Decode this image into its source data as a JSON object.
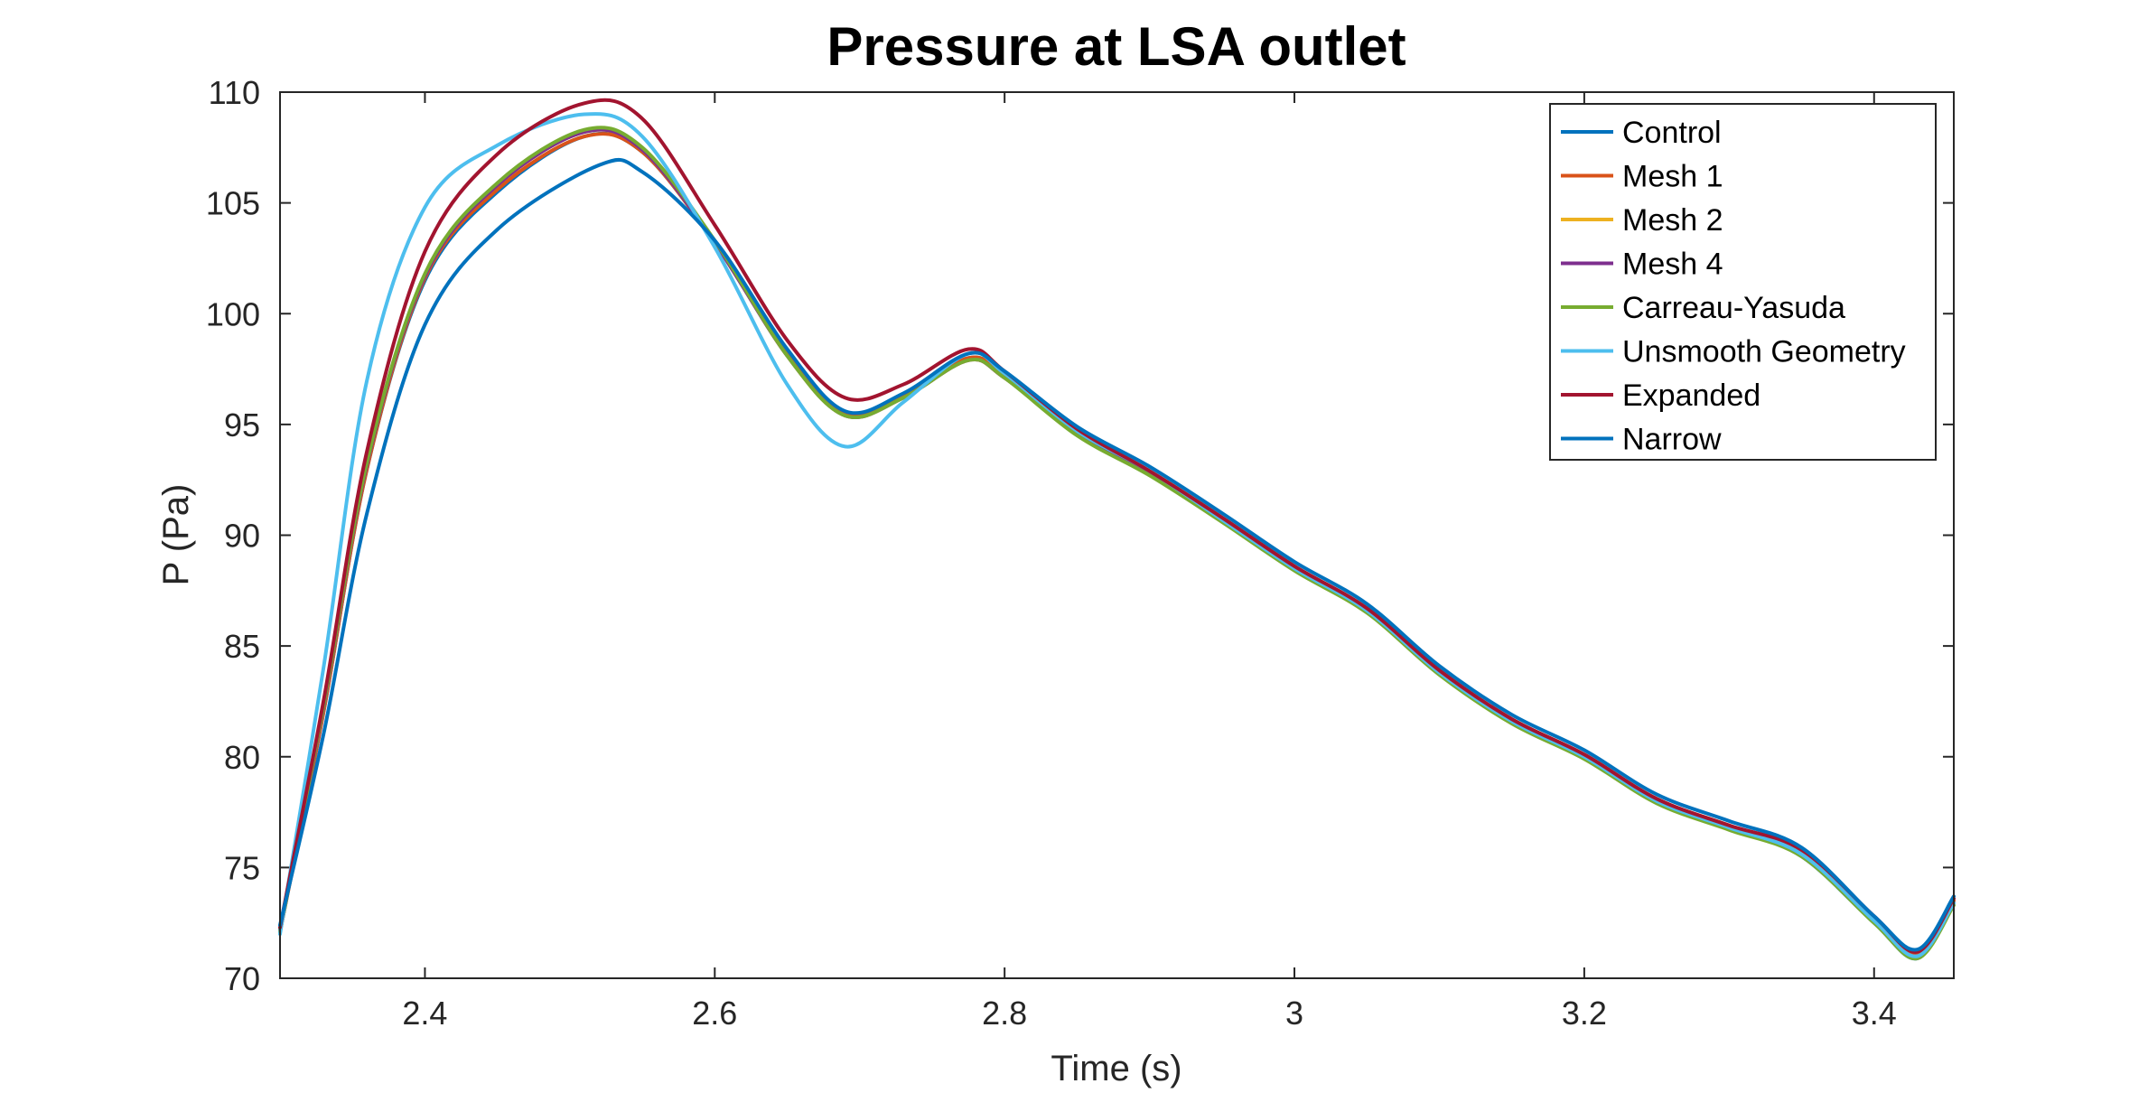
{
  "chart_data": {
    "type": "line",
    "title": "Pressure at LSA outlet",
    "xlabel": "Time (s)",
    "ylabel": "P (Pa)",
    "xlim": [
      2.3,
      3.455
    ],
    "ylim": [
      70,
      110
    ],
    "xticks": [
      2.4,
      2.6,
      2.8,
      3,
      3.2,
      3.4
    ],
    "xtick_labels": [
      "2.4",
      "2.6",
      "2.8",
      "3",
      "3.2",
      "3.4"
    ],
    "yticks": [
      70,
      75,
      80,
      85,
      90,
      95,
      100,
      105,
      110
    ],
    "ytick_labels": [
      "70",
      "75",
      "80",
      "85",
      "90",
      "95",
      "100",
      "105",
      "110"
    ],
    "grid": false,
    "legend_position": "top-right",
    "series": [
      {
        "name": "Control",
        "color": "#0072BD",
        "x": [
          2.3,
          2.33,
          2.36,
          2.4,
          2.45,
          2.51,
          2.55,
          2.6,
          2.65,
          2.69,
          2.73,
          2.775,
          2.8,
          2.85,
          2.9,
          2.95,
          3.0,
          3.05,
          3.1,
          3.15,
          3.2,
          3.25,
          3.3,
          3.35,
          3.4,
          3.43,
          3.455
        ],
        "y": [
          72.2,
          82.0,
          93.0,
          101.5,
          105.5,
          108.0,
          107.3,
          103.2,
          98.2,
          95.5,
          96.3,
          98.0,
          97.2,
          94.6,
          92.8,
          90.7,
          88.5,
          86.6,
          83.8,
          81.6,
          80.0,
          78.0,
          76.8,
          75.5,
          72.5,
          70.9,
          73.4
        ]
      },
      {
        "name": "Mesh 1",
        "color": "#D95319",
        "x": [
          2.3,
          2.33,
          2.36,
          2.4,
          2.45,
          2.51,
          2.55,
          2.6,
          2.65,
          2.69,
          2.73,
          2.775,
          2.8,
          2.85,
          2.9,
          2.95,
          3.0,
          3.05,
          3.1,
          3.15,
          3.2,
          3.25,
          3.3,
          3.35,
          3.4,
          3.43,
          3.455
        ],
        "y": [
          72.1,
          82.0,
          93.0,
          101.6,
          105.6,
          108.0,
          107.3,
          103.2,
          98.2,
          95.5,
          96.3,
          98.0,
          97.2,
          94.7,
          92.9,
          90.8,
          88.6,
          86.7,
          83.9,
          81.7,
          80.1,
          78.1,
          76.9,
          75.7,
          72.7,
          71.1,
          73.5
        ]
      },
      {
        "name": "Mesh 2",
        "color": "#EDB120",
        "x": [
          2.3,
          2.33,
          2.36,
          2.4,
          2.45,
          2.51,
          2.55,
          2.6,
          2.65,
          2.69,
          2.73,
          2.775,
          2.8,
          2.85,
          2.9,
          2.95,
          3.0,
          3.05,
          3.1,
          3.15,
          3.2,
          3.25,
          3.3,
          3.35,
          3.4,
          3.43,
          3.455
        ],
        "y": [
          72.1,
          82.2,
          93.2,
          101.7,
          105.8,
          108.2,
          107.4,
          103.2,
          98.1,
          95.4,
          96.2,
          97.9,
          97.1,
          94.6,
          92.8,
          90.7,
          88.5,
          86.6,
          83.8,
          81.6,
          80.0,
          78.0,
          76.8,
          75.6,
          72.6,
          71.0,
          73.4
        ]
      },
      {
        "name": "Mesh 4",
        "color": "#7E2F8E",
        "x": [
          2.3,
          2.33,
          2.36,
          2.4,
          2.45,
          2.51,
          2.55,
          2.6,
          2.65,
          2.69,
          2.73,
          2.775,
          2.8,
          2.85,
          2.9,
          2.95,
          3.0,
          3.05,
          3.1,
          3.15,
          3.2,
          3.25,
          3.3,
          3.35,
          3.4,
          3.43,
          3.455
        ],
        "y": [
          72.1,
          82.2,
          93.2,
          101.7,
          105.8,
          108.2,
          107.4,
          103.2,
          98.1,
          95.4,
          96.2,
          97.9,
          97.1,
          94.6,
          92.8,
          90.7,
          88.5,
          86.6,
          83.8,
          81.6,
          80.0,
          78.0,
          76.8,
          75.6,
          72.6,
          71.0,
          73.4
        ]
      },
      {
        "name": "Carreau-Yasuda",
        "color": "#77AC30",
        "x": [
          2.3,
          2.33,
          2.36,
          2.4,
          2.45,
          2.51,
          2.55,
          2.6,
          2.65,
          2.69,
          2.73,
          2.775,
          2.8,
          2.85,
          2.9,
          2.95,
          3.0,
          3.05,
          3.1,
          3.15,
          3.2,
          3.25,
          3.3,
          3.35,
          3.4,
          3.43,
          3.455
        ],
        "y": [
          72.1,
          82.3,
          93.3,
          101.8,
          105.9,
          108.3,
          107.5,
          103.3,
          98.1,
          95.4,
          96.2,
          97.9,
          97.1,
          94.5,
          92.7,
          90.6,
          88.4,
          86.5,
          83.7,
          81.5,
          79.9,
          77.9,
          76.7,
          75.5,
          72.5,
          70.9,
          73.3
        ]
      },
      {
        "name": "Unsmooth Geometry",
        "color": "#4DBEEE",
        "x": [
          2.3,
          2.33,
          2.36,
          2.4,
          2.45,
          2.51,
          2.55,
          2.6,
          2.65,
          2.69,
          2.73,
          2.775,
          2.8,
          2.85,
          2.9,
          2.95,
          3.0,
          3.05,
          3.1,
          3.15,
          3.2,
          3.25,
          3.3,
          3.35,
          3.4,
          3.43,
          3.455
        ],
        "y": [
          72.0,
          84.0,
          97.0,
          104.8,
          107.6,
          109.0,
          108.0,
          103.0,
          96.8,
          94.0,
          96.0,
          98.2,
          97.3,
          94.7,
          92.9,
          90.7,
          88.5,
          86.6,
          83.8,
          81.6,
          80.0,
          78.0,
          76.8,
          75.6,
          72.6,
          71.0,
          73.4
        ]
      },
      {
        "name": "Expanded",
        "color": "#A2142F",
        "x": [
          2.3,
          2.33,
          2.36,
          2.4,
          2.45,
          2.51,
          2.55,
          2.6,
          2.65,
          2.69,
          2.73,
          2.775,
          2.8,
          2.85,
          2.9,
          2.95,
          3.0,
          3.05,
          3.1,
          3.15,
          3.2,
          3.25,
          3.3,
          3.35,
          3.4,
          3.43,
          3.455
        ],
        "y": [
          72.3,
          82.5,
          93.8,
          102.8,
          107.2,
          109.5,
          108.8,
          104.0,
          98.8,
          96.2,
          96.8,
          98.4,
          97.4,
          94.8,
          92.9,
          90.8,
          88.6,
          86.7,
          83.9,
          81.7,
          80.1,
          78.1,
          76.9,
          75.8,
          72.8,
          71.2,
          73.6
        ]
      },
      {
        "name": "Narrow",
        "color": "#0072BD",
        "x": [
          2.3,
          2.33,
          2.36,
          2.4,
          2.45,
          2.52,
          2.55,
          2.6,
          2.65,
          2.69,
          2.73,
          2.775,
          2.8,
          2.85,
          2.9,
          2.95,
          3.0,
          3.05,
          3.1,
          3.15,
          3.2,
          3.25,
          3.3,
          3.35,
          3.4,
          3.43,
          3.455
        ],
        "y": [
          72.4,
          81.0,
          91.0,
          99.5,
          103.8,
          106.7,
          106.4,
          103.3,
          98.4,
          95.6,
          96.4,
          98.2,
          97.4,
          94.9,
          93.1,
          91.0,
          88.8,
          86.9,
          84.1,
          81.9,
          80.3,
          78.3,
          77.1,
          75.9,
          72.8,
          71.3,
          73.7
        ]
      }
    ]
  }
}
